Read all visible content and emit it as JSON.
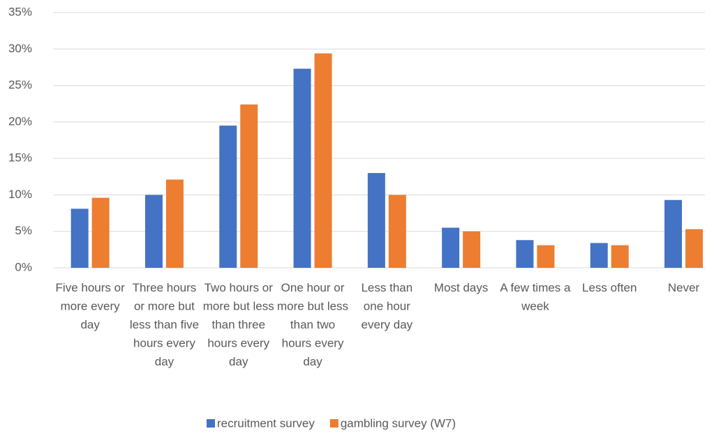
{
  "chart_data": {
    "type": "bar",
    "categories": [
      "Five hours or more every day",
      "Three hours or more but less than five hours every day",
      "Two hours or more but less than three hours every day",
      "One hour or more but less than two hours every day",
      "Less than one hour every day",
      "Most days",
      "A few times a week",
      "Less often",
      "Never"
    ],
    "series": [
      {
        "name": "recruitment survey",
        "color": "#4472c4",
        "values": [
          8.1,
          10.0,
          19.5,
          27.3,
          13.0,
          5.5,
          3.8,
          3.4,
          9.3
        ]
      },
      {
        "name": "gambling survey (W7)",
        "color": "#ed7d31",
        "values": [
          9.6,
          12.1,
          22.4,
          29.4,
          10.0,
          5.0,
          3.1,
          3.1,
          5.3
        ]
      }
    ],
    "ylim": [
      0,
      35
    ],
    "yticks": [
      {
        "value": 0,
        "label": "0%"
      },
      {
        "value": 5,
        "label": "5%"
      },
      {
        "value": 10,
        "label": "10%"
      },
      {
        "value": 15,
        "label": "15%"
      },
      {
        "value": 20,
        "label": "20%"
      },
      {
        "value": 25,
        "label": "25%"
      },
      {
        "value": 30,
        "label": "30%"
      },
      {
        "value": 35,
        "label": "35%"
      }
    ],
    "grid": true,
    "legend": "bottom"
  }
}
